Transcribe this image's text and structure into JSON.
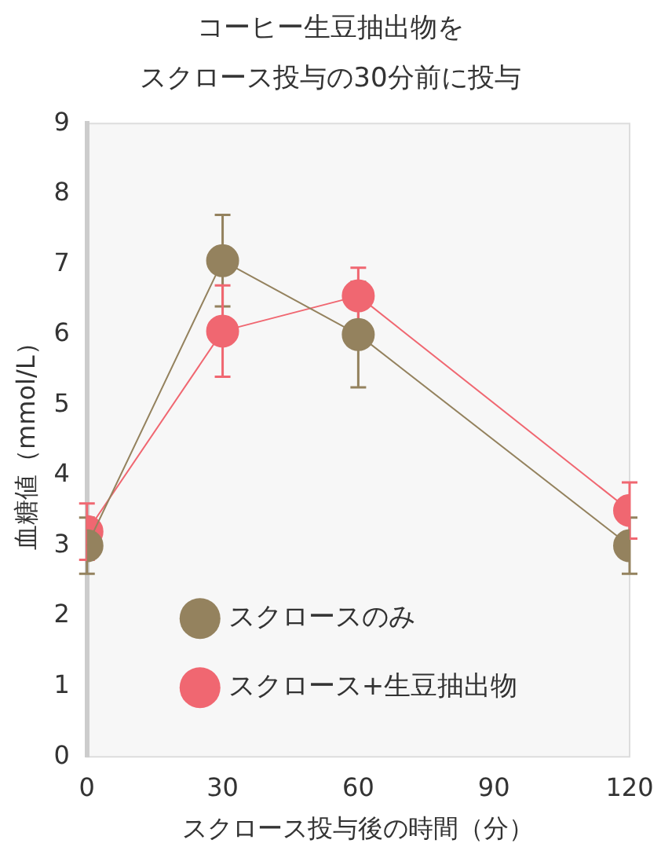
{
  "chart_data": {
    "type": "line",
    "title": "コーヒー生豆抽出物を",
    "subtitle": "スクロース投与の30分前に投与",
    "xlabel": "スクロース投与後の時間（分）",
    "ylabel": "血糖値（mmol/L）",
    "x": [
      0,
      30,
      60,
      120
    ],
    "xlim": [
      0,
      120
    ],
    "xticks": [
      0,
      30,
      60,
      90,
      120
    ],
    "ylim": [
      0,
      9
    ],
    "yticks": [
      0,
      1,
      2,
      3,
      4,
      5,
      6,
      7,
      8,
      9
    ],
    "series": [
      {
        "name": "スクロースのみ",
        "color": "#94825e",
        "values": [
          3.0,
          7.05,
          6.0,
          3.0
        ],
        "errors": [
          0.4,
          0.65,
          0.75,
          0.4
        ]
      },
      {
        "name": "スクロース+生豆抽出物",
        "color": "#f06771",
        "values": [
          3.2,
          6.05,
          6.55,
          3.5
        ],
        "errors": [
          0.4,
          0.65,
          0.4,
          0.4
        ]
      }
    ],
    "marker": "circle",
    "line_style": "solid",
    "grid": false,
    "legend": "bottom left"
  }
}
